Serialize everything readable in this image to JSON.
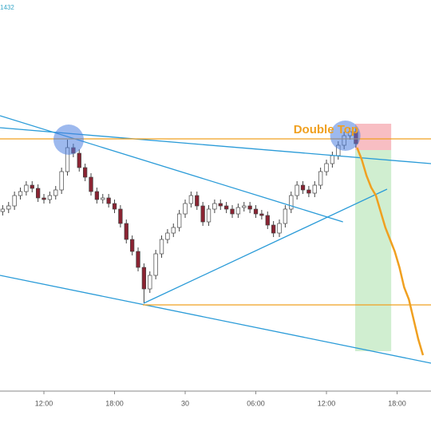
{
  "chart_data": {
    "type": "candlestick",
    "header_text": "1432",
    "x": [
      8.5,
      9,
      9.5,
      10,
      10.5,
      11,
      11.5,
      12,
      12.5,
      13,
      13.5,
      14,
      14.5,
      15,
      15.5,
      16,
      16.5,
      17,
      17.5,
      18,
      18.5,
      19,
      19.5,
      20,
      20.5,
      21,
      21.5,
      22,
      22.5,
      23,
      23.5,
      24,
      24.5,
      25,
      25.5,
      26,
      26.5,
      27,
      27.5,
      28,
      28.5,
      29,
      29.5,
      30,
      30.5,
      31,
      31.5,
      32,
      32.5,
      33,
      33.5,
      34,
      34.5,
      35,
      35.5,
      36,
      36.5,
      37,
      37.5,
      38,
      38.5
    ],
    "open": [
      225,
      228,
      232,
      245,
      250,
      258,
      254,
      242,
      240,
      245,
      252,
      275,
      305,
      298,
      280,
      268,
      250,
      240,
      242,
      235,
      228,
      210,
      190,
      175,
      155,
      128,
      145,
      172,
      190,
      198,
      205,
      222,
      235,
      245,
      232,
      212,
      228,
      235,
      232,
      228,
      222,
      230,
      232,
      228,
      222,
      220,
      208,
      198,
      210,
      228,
      245,
      258,
      252,
      248,
      258,
      275,
      285,
      295,
      308,
      320,
      325
    ],
    "high": [
      233,
      237,
      250,
      255,
      263,
      263,
      259,
      247,
      250,
      257,
      280,
      315,
      310,
      303,
      285,
      273,
      255,
      247,
      247,
      240,
      233,
      215,
      195,
      180,
      160,
      150,
      177,
      195,
      203,
      210,
      227,
      240,
      250,
      250,
      237,
      233,
      240,
      240,
      237,
      233,
      235,
      237,
      237,
      233,
      227,
      225,
      213,
      215,
      233,
      250,
      263,
      263,
      257,
      263,
      280,
      290,
      300,
      313,
      325,
      330,
      330
    ],
    "low": [
      220,
      223,
      227,
      240,
      245,
      249,
      237,
      235,
      235,
      240,
      247,
      270,
      293,
      275,
      263,
      245,
      235,
      235,
      230,
      223,
      205,
      185,
      170,
      150,
      110,
      123,
      140,
      167,
      185,
      193,
      200,
      217,
      230,
      227,
      207,
      207,
      223,
      227,
      223,
      217,
      217,
      225,
      223,
      217,
      215,
      203,
      193,
      193,
      205,
      223,
      240,
      247,
      243,
      243,
      253,
      270,
      280,
      290,
      303,
      315,
      305
    ],
    "close": [
      228,
      232,
      245,
      250,
      258,
      254,
      242,
      240,
      245,
      252,
      275,
      305,
      298,
      280,
      268,
      250,
      240,
      242,
      235,
      228,
      210,
      190,
      175,
      155,
      128,
      145,
      172,
      190,
      198,
      205,
      222,
      235,
      245,
      232,
      212,
      228,
      235,
      232,
      228,
      222,
      230,
      232,
      228,
      222,
      220,
      208,
      198,
      210,
      228,
      245,
      258,
      252,
      248,
      258,
      275,
      285,
      295,
      308,
      320,
      325,
      310
    ],
    "up_color": "#ffffff",
    "down_color": "#8b2332",
    "xlim": [
      8.27,
      44.88
    ],
    "ylim": [
      0,
      490
    ],
    "xticks": [
      {
        "value": 12,
        "label": "12:00"
      },
      {
        "value": 18,
        "label": "18:00"
      },
      {
        "value": 24,
        "label": "30"
      },
      {
        "value": 30,
        "label": "06:00"
      },
      {
        "value": 36,
        "label": "12:00"
      },
      {
        "value": 42,
        "label": "18:00"
      }
    ],
    "lines": [
      {
        "x": [
          8.27,
          37.4
        ],
        "values": [
          345,
          212
        ],
        "color": "#2a9bd8"
      },
      {
        "x": [
          8.27,
          44.88
        ],
        "values": [
          330,
          285
        ],
        "color": "#2a9bd8"
      },
      {
        "x": [
          20.47,
          41.15
        ],
        "values": [
          110,
          253
        ],
        "color": "#2a9bd8"
      },
      {
        "x": [
          8.27,
          44.88
        ],
        "values": [
          145,
          35
        ],
        "color": "#2a9bd8"
      },
      {
        "x": [
          8.27,
          44.88
        ],
        "values": [
          316,
          316
        ],
        "color": "#f0a020"
      },
      {
        "x": [
          20.4,
          44.88
        ],
        "values": [
          108,
          108
        ],
        "color": "#f0a020"
      }
    ],
    "zones": [
      {
        "x": [
          38.44,
          41.5
        ],
        "y": [
          302,
          335
        ],
        "color": "#f7b3b8"
      },
      {
        "x": [
          38.44,
          41.5
        ],
        "y": [
          50,
          302
        ],
        "color": "#c8ebc8"
      }
    ],
    "markers": [
      {
        "x": 14.1,
        "y": 315,
        "color": "#4d7fe0"
      },
      {
        "x": 37.6,
        "y": 320,
        "color": "#4d7fe0"
      }
    ],
    "projection": {
      "x": [
        38.6,
        39,
        39.4,
        39.8,
        40.2,
        40.6,
        41,
        41.4,
        41.8,
        42.2,
        42.6,
        43,
        43.4,
        43.8,
        44.2
      ],
      "values": [
        305,
        290,
        270,
        255,
        245,
        225,
        205,
        190,
        175,
        155,
        130,
        115,
        90,
        65,
        45
      ],
      "color": "#f0a020"
    },
    "annotations": [
      {
        "text": "Double Top",
        "x": 33.2,
        "y": 327,
        "color": "#f0a020"
      }
    ]
  }
}
